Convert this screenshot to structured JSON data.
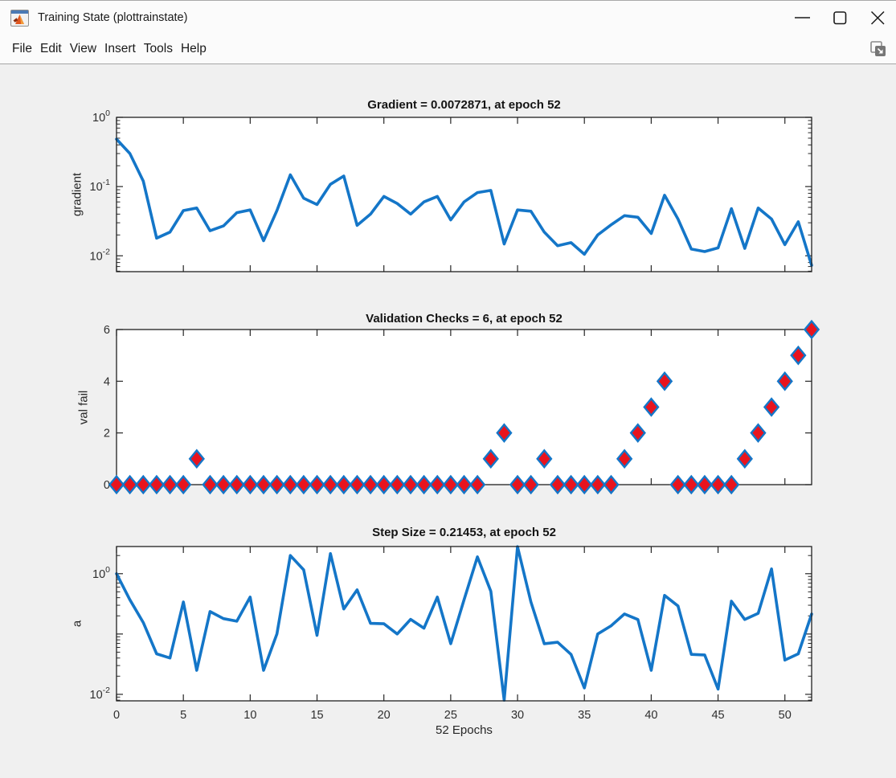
{
  "window": {
    "title": "Training State (plottrainstate)",
    "app_icon": "matlab-figure-icon",
    "controls": [
      "minimize",
      "maximize",
      "close"
    ]
  },
  "menu": {
    "items": [
      "File",
      "Edit",
      "View",
      "Insert",
      "Tools",
      "Help"
    ],
    "dock_icon": "dock-figure-icon"
  },
  "colors": {
    "line_blue": "#1476C8",
    "marker_red": "#E8141E",
    "axis": "#262626",
    "tick_text": "#2e2e2e",
    "plot_bg": "#ffffff",
    "figure_bg": "#f0f0f0",
    "chrome_bg": "#fbfbfb"
  },
  "chart_data": [
    {
      "type": "line",
      "title": "Gradient = 0.0072871, at epoch 52",
      "ylabel": "gradient",
      "yscale": "log",
      "ylim": [
        0.0059,
        1.0
      ],
      "ytick_exponents": [
        0,
        -1,
        -2
      ],
      "ytick_labeled_exponents": [
        0,
        -1,
        -2
      ],
      "xlim": [
        0,
        52
      ],
      "xticks": [
        0,
        5,
        10,
        15,
        20,
        25,
        30,
        35,
        40,
        45,
        50
      ],
      "show_xtick_labels": false,
      "grid": false,
      "line_color": "#1476C8",
      "final": {
        "epoch": 52,
        "value": 0.0072871
      },
      "values": [
        0.485,
        0.3,
        0.12,
        0.018,
        0.022,
        0.045,
        0.049,
        0.023,
        0.027,
        0.042,
        0.046,
        0.0165,
        0.045,
        0.148,
        0.068,
        0.055,
        0.108,
        0.142,
        0.0275,
        0.04,
        0.072,
        0.057,
        0.04,
        0.06,
        0.072,
        0.033,
        0.06,
        0.082,
        0.088,
        0.0148,
        0.046,
        0.044,
        0.022,
        0.014,
        0.0155,
        0.0105,
        0.02,
        0.028,
        0.038,
        0.036,
        0.021,
        0.075,
        0.034,
        0.0125,
        0.0115,
        0.013,
        0.048,
        0.0128,
        0.049,
        0.034,
        0.0145,
        0.031,
        0.0072871
      ]
    },
    {
      "type": "scatter",
      "marker": "diamond",
      "title": "Validation Checks = 6, at epoch 52",
      "ylabel": "val fail",
      "yscale": "linear",
      "ylim": [
        0,
        6
      ],
      "yticks": [
        0,
        2,
        4,
        6
      ],
      "xlim": [
        0,
        52
      ],
      "xticks": [
        0,
        5,
        10,
        15,
        20,
        25,
        30,
        35,
        40,
        45,
        50
      ],
      "show_xtick_labels": false,
      "grid": false,
      "marker_fill": "#E8141E",
      "marker_edge": "#1476C8",
      "final": {
        "epoch": 52,
        "value": 6
      },
      "values": [
        0,
        0,
        0,
        0,
        0,
        0,
        1,
        0,
        0,
        0,
        0,
        0,
        0,
        0,
        0,
        0,
        0,
        0,
        0,
        0,
        0,
        0,
        0,
        0,
        0,
        0,
        0,
        0,
        1,
        2,
        0,
        0,
        1,
        0,
        0,
        0,
        0,
        0,
        1,
        2,
        3,
        4,
        0,
        0,
        0,
        0,
        0,
        1,
        2,
        3,
        4,
        5,
        6
      ]
    },
    {
      "type": "line",
      "title": "Step Size = 0.21453, at epoch 52",
      "ylabel": "a",
      "xlabel": "52 Epochs",
      "yscale": "log",
      "ylim": [
        0.0078,
        2.82
      ],
      "ytick_exponents": [
        0,
        -1,
        -2
      ],
      "ytick_labeled_exponents": [
        0,
        -2
      ],
      "xlim": [
        0,
        52
      ],
      "xticks": [
        0,
        5,
        10,
        15,
        20,
        25,
        30,
        35,
        40,
        45,
        50
      ],
      "show_xtick_labels": true,
      "grid": false,
      "line_color": "#1476C8",
      "final": {
        "epoch": 52,
        "value": 0.21453
      },
      "values": [
        1.0,
        0.37,
        0.155,
        0.047,
        0.04,
        0.34,
        0.025,
        0.236,
        0.18,
        0.163,
        0.41,
        0.025,
        0.1,
        2.0,
        1.16,
        0.095,
        2.15,
        0.26,
        0.54,
        0.15,
        0.148,
        0.1,
        0.175,
        0.125,
        0.41,
        0.069,
        0.37,
        1.9,
        0.51,
        0.008,
        2.8,
        0.34,
        0.069,
        0.073,
        0.046,
        0.0128,
        0.1,
        0.137,
        0.215,
        0.174,
        0.025,
        0.437,
        0.292,
        0.046,
        0.045,
        0.0122,
        0.35,
        0.174,
        0.22,
        1.2,
        0.037,
        0.047,
        0.21453
      ]
    }
  ]
}
